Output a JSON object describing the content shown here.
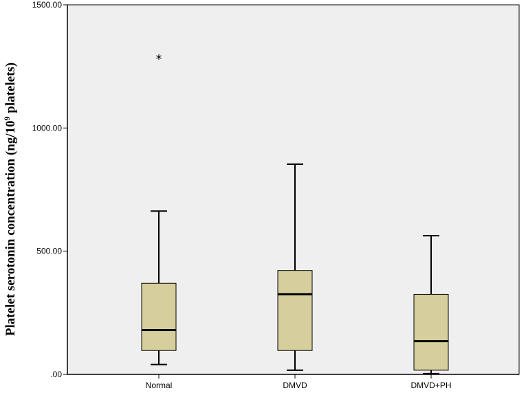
{
  "chart_data": {
    "type": "box",
    "ylabel": {
      "before": "Platelet serotonin concentration (ng/10",
      "sup": "9",
      "after": " platelets)"
    },
    "xlabel": "",
    "ylim": [
      0,
      1500
    ],
    "y_ticks": [
      {
        "value": 0,
        "label": ".00"
      },
      {
        "value": 500,
        "label": "500.00"
      },
      {
        "value": 1000,
        "label": "1000.00"
      },
      {
        "value": 1500,
        "label": "1500.00"
      }
    ],
    "categories": [
      "Normal",
      "DMVD",
      "DMVD+PH"
    ],
    "boxes": [
      {
        "category": "Normal",
        "whisker_low": 40,
        "q1": 97,
        "median": 180,
        "q3": 370,
        "whisker_high": 663,
        "outliers": [
          1285
        ],
        "outlier_marker": "*"
      },
      {
        "category": "DMVD",
        "whisker_low": 17,
        "q1": 97,
        "median": 325,
        "q3": 422,
        "whisker_high": 853,
        "outliers": [],
        "outlier_marker": "*"
      },
      {
        "category": "DMVD+PH",
        "whisker_low": 3,
        "q1": 17,
        "median": 135,
        "q3": 325,
        "whisker_high": 563,
        "outliers": [],
        "outlier_marker": "*"
      }
    ],
    "colors": {
      "plot_background": "#efefef",
      "box_fill": "#d6cf9d",
      "stroke": "#000000"
    },
    "grid": false,
    "legend": "none"
  }
}
